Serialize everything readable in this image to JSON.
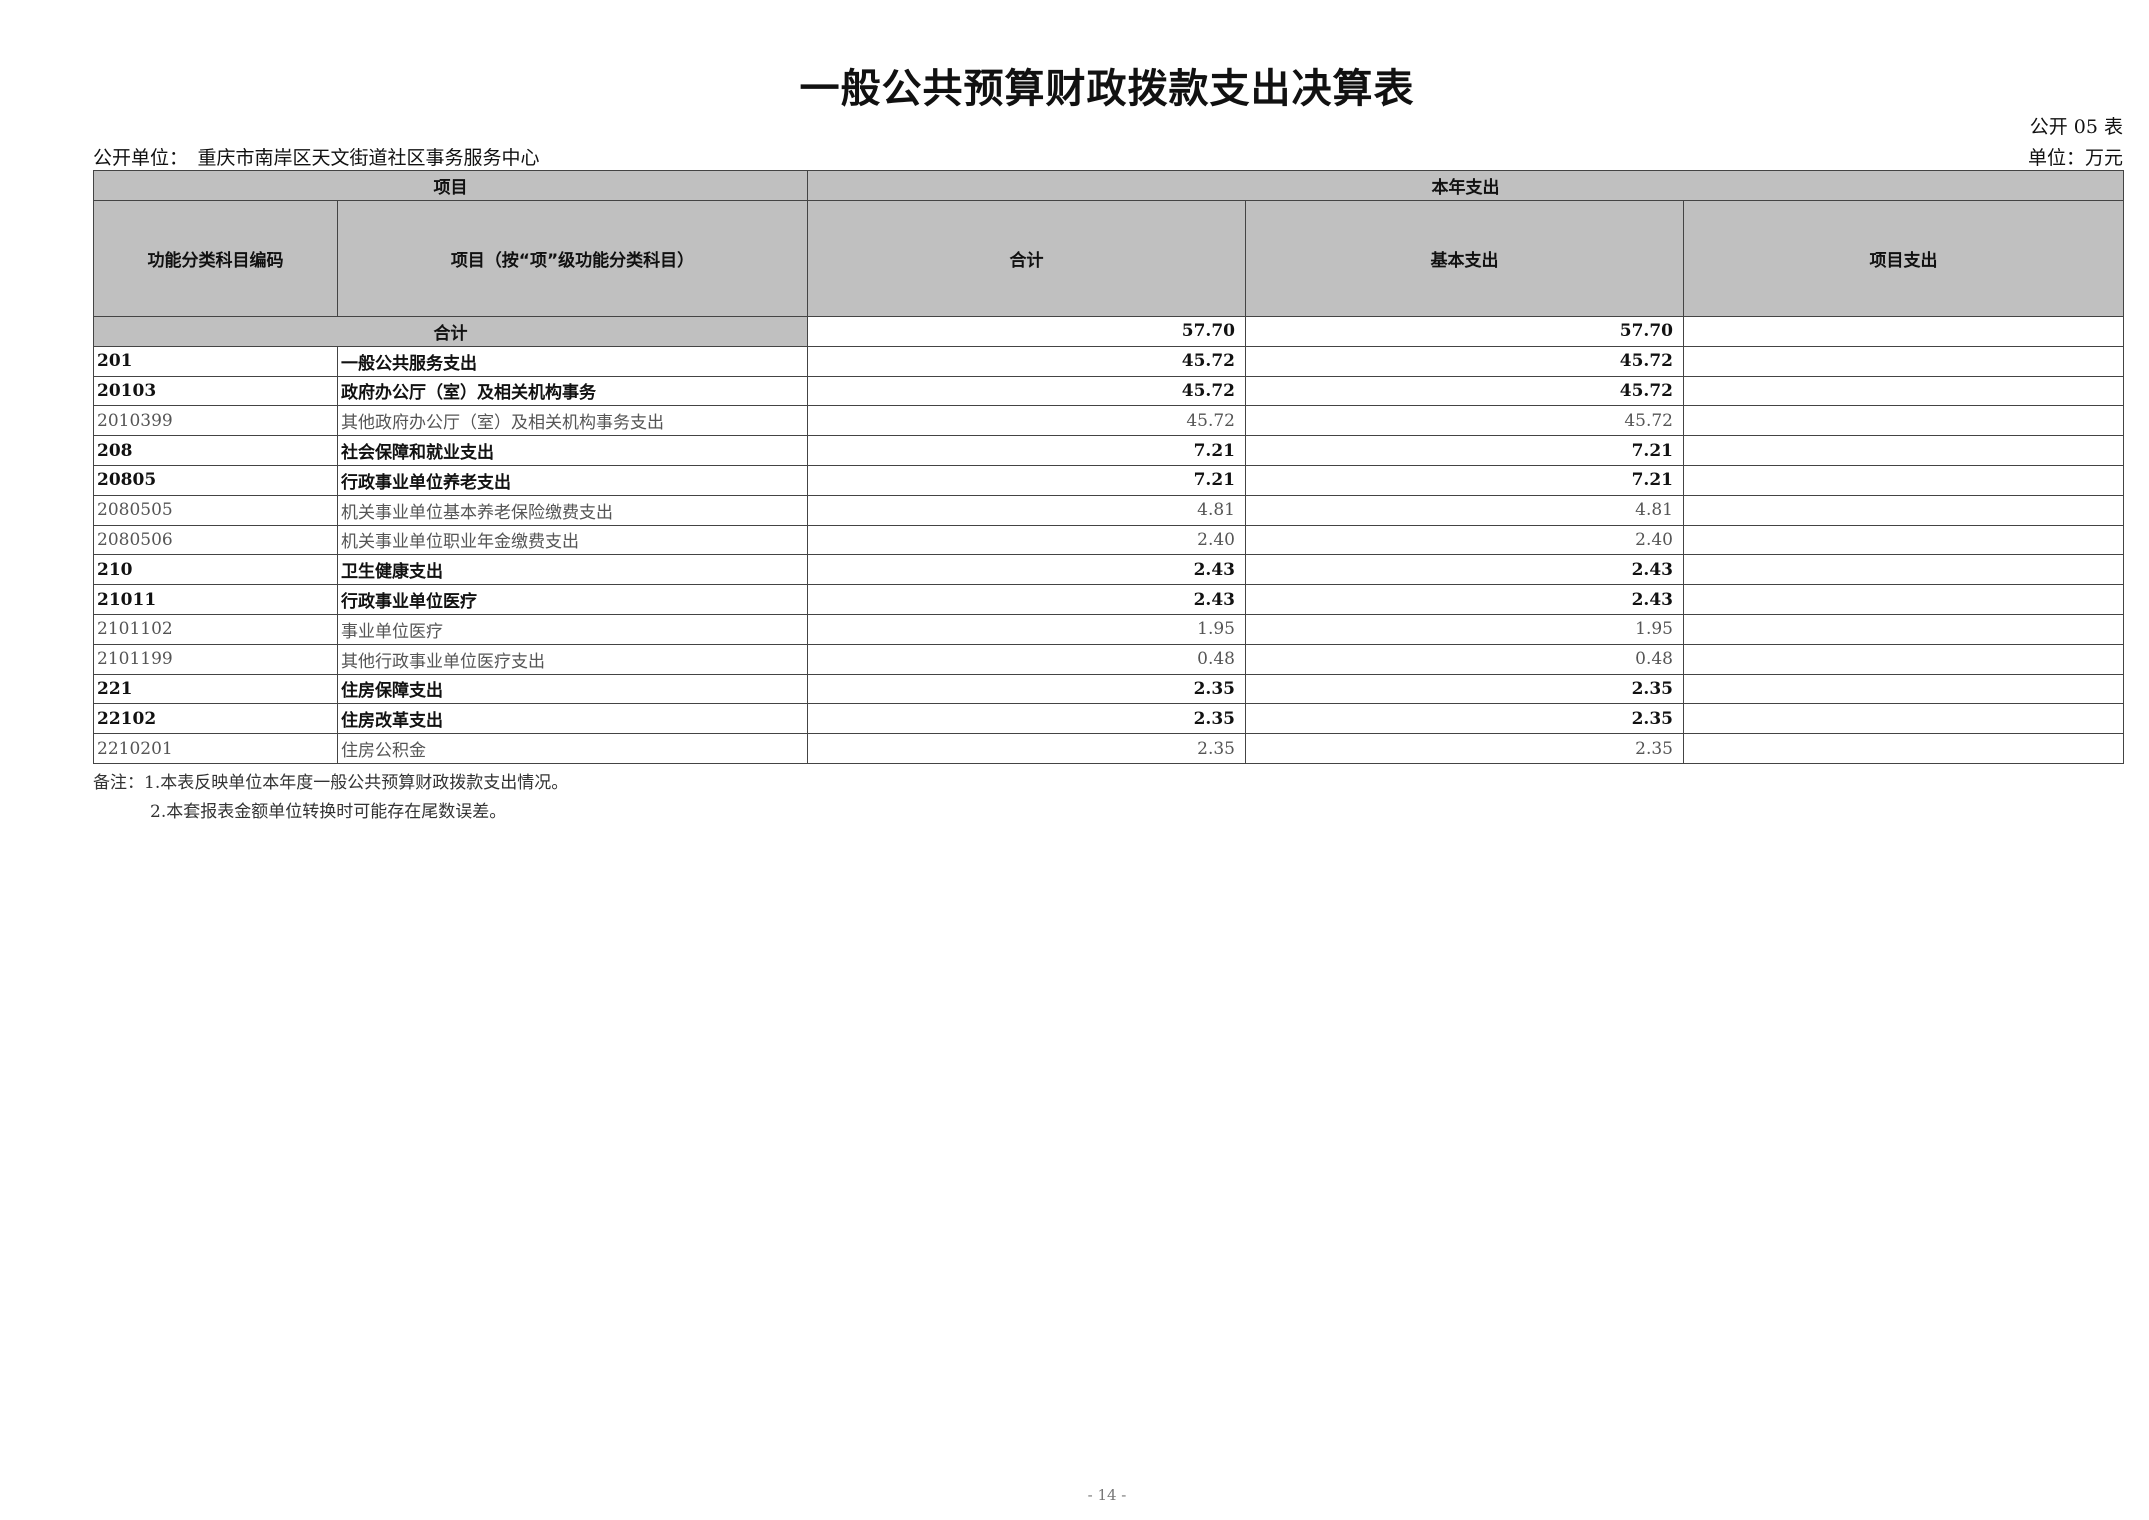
{
  "title": "一般公共预算财政拨款支出决算表",
  "table_no": "公开 05 表",
  "unit_label": "公开单位：　重庆市南岸区天文街道社区事务服务中心",
  "currency_unit": "单位：万元",
  "headers": {
    "item": "项目",
    "current_year": "本年支出",
    "code": "功能分类科目编码",
    "name": "项目（按“项”级功能分类科目）",
    "total": "合计",
    "basic": "基本支出",
    "project": "项目支出"
  },
  "total_row": {
    "label": "合计",
    "total": "57.70",
    "basic": "57.70",
    "project": ""
  },
  "rows": [
    {
      "code": "201",
      "name": "一般公共服务支出",
      "total": "45.72",
      "basic": "45.72",
      "project": "",
      "bold": true
    },
    {
      "code": "20103",
      "name": "政府办公厅（室）及相关机构事务",
      "total": "45.72",
      "basic": "45.72",
      "project": "",
      "bold": true
    },
    {
      "code": "2010399",
      "name": "其他政府办公厅（室）及相关机构事务支出",
      "total": "45.72",
      "basic": "45.72",
      "project": "",
      "bold": false
    },
    {
      "code": "208",
      "name": "社会保障和就业支出",
      "total": "7.21",
      "basic": "7.21",
      "project": "",
      "bold": true
    },
    {
      "code": "20805",
      "name": "行政事业单位养老支出",
      "total": "7.21",
      "basic": "7.21",
      "project": "",
      "bold": true
    },
    {
      "code": "2080505",
      "name": "机关事业单位基本养老保险缴费支出",
      "total": "4.81",
      "basic": "4.81",
      "project": "",
      "bold": false
    },
    {
      "code": "2080506",
      "name": "机关事业单位职业年金缴费支出",
      "total": "2.40",
      "basic": "2.40",
      "project": "",
      "bold": false
    },
    {
      "code": "210",
      "name": "卫生健康支出",
      "total": "2.43",
      "basic": "2.43",
      "project": "",
      "bold": true
    },
    {
      "code": "21011",
      "name": "行政事业单位医疗",
      "total": "2.43",
      "basic": "2.43",
      "project": "",
      "bold": true
    },
    {
      "code": "2101102",
      "name": "事业单位医疗",
      "total": "1.95",
      "basic": "1.95",
      "project": "",
      "bold": false
    },
    {
      "code": "2101199",
      "name": "其他行政事业单位医疗支出",
      "total": "0.48",
      "basic": "0.48",
      "project": "",
      "bold": false
    },
    {
      "code": "221",
      "name": "住房保障支出",
      "total": "2.35",
      "basic": "2.35",
      "project": "",
      "bold": true
    },
    {
      "code": "22102",
      "name": "住房改革支出",
      "total": "2.35",
      "basic": "2.35",
      "project": "",
      "bold": true
    },
    {
      "code": "2210201",
      "name": "住房公积金",
      "total": "2.35",
      "basic": "2.35",
      "project": "",
      "bold": false
    }
  ],
  "notes": [
    "备注：1.本表反映单位本年度一般公共预算财政拨款支出情况。",
    "2.本套报表金额单位转换时可能存在尾数误差。"
  ],
  "page_number": "- 14 -"
}
